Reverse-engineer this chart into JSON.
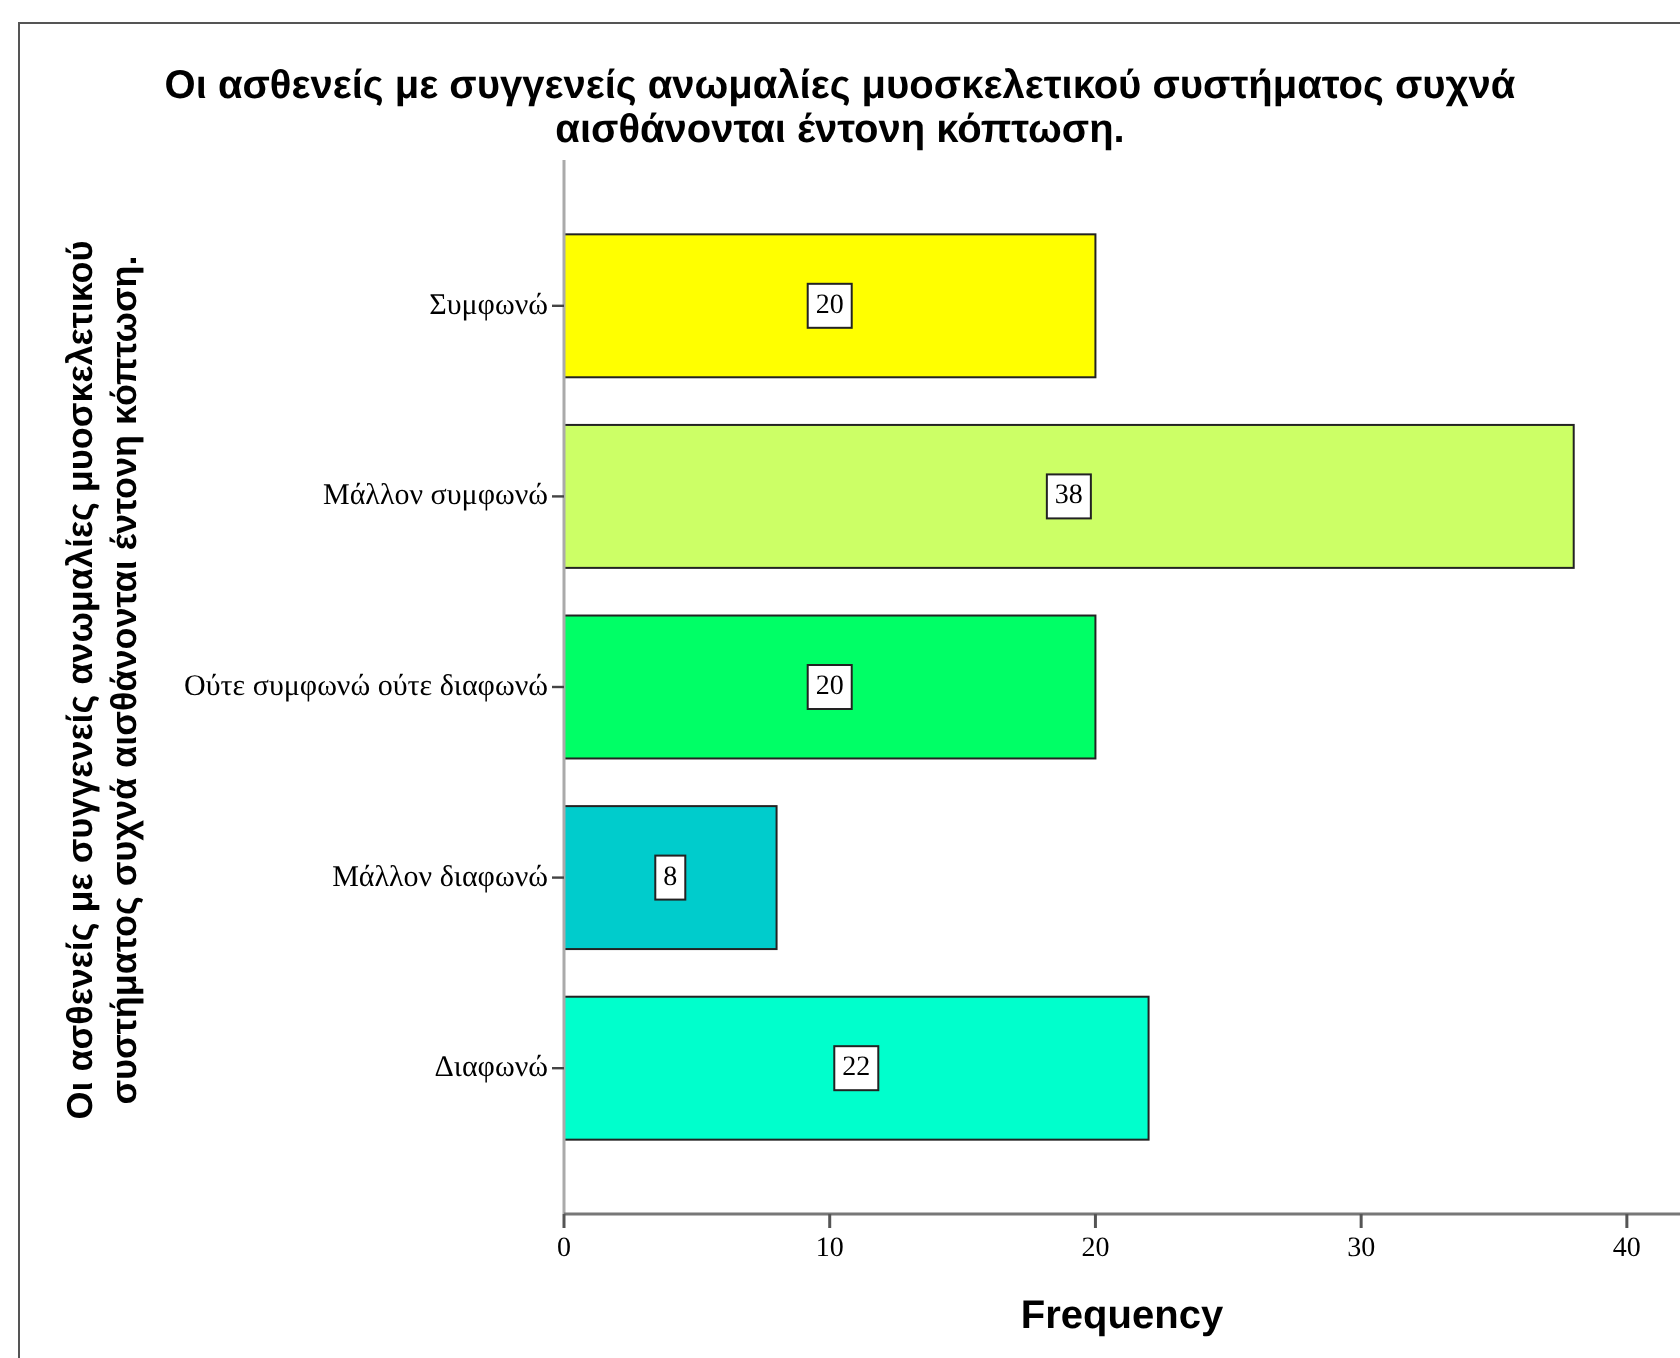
{
  "chart_data": {
    "type": "bar",
    "orientation": "horizontal",
    "title": "Οι ασθενείς με συγγενείς ανωμαλίες μυοσκελετικού συστήματος συχνά αισθάνονται έντονη κόπτωση.",
    "xlabel": "Frequency",
    "ylabel": "Οι ασθενείς με συγγενείς ανωμαλίες μυοσκελετικού συστήματος συχνά αισθάνονται έντονη κόπτωση.",
    "categories": [
      "Συμφωνώ",
      "Μάλλον συμφωνώ",
      "Ούτε συμφωνώ ούτε διαφωνώ",
      "Μάλλον διαφωνώ",
      "Διαφωνώ"
    ],
    "values": [
      20,
      38,
      20,
      8,
      22
    ],
    "colors": [
      "#ffff00",
      "#ccff66",
      "#00ff66",
      "#00cccc",
      "#00ffcc"
    ],
    "xlim": [
      0,
      42
    ],
    "xticks": [
      0,
      10,
      20,
      30,
      40
    ],
    "data_labels": true
  }
}
